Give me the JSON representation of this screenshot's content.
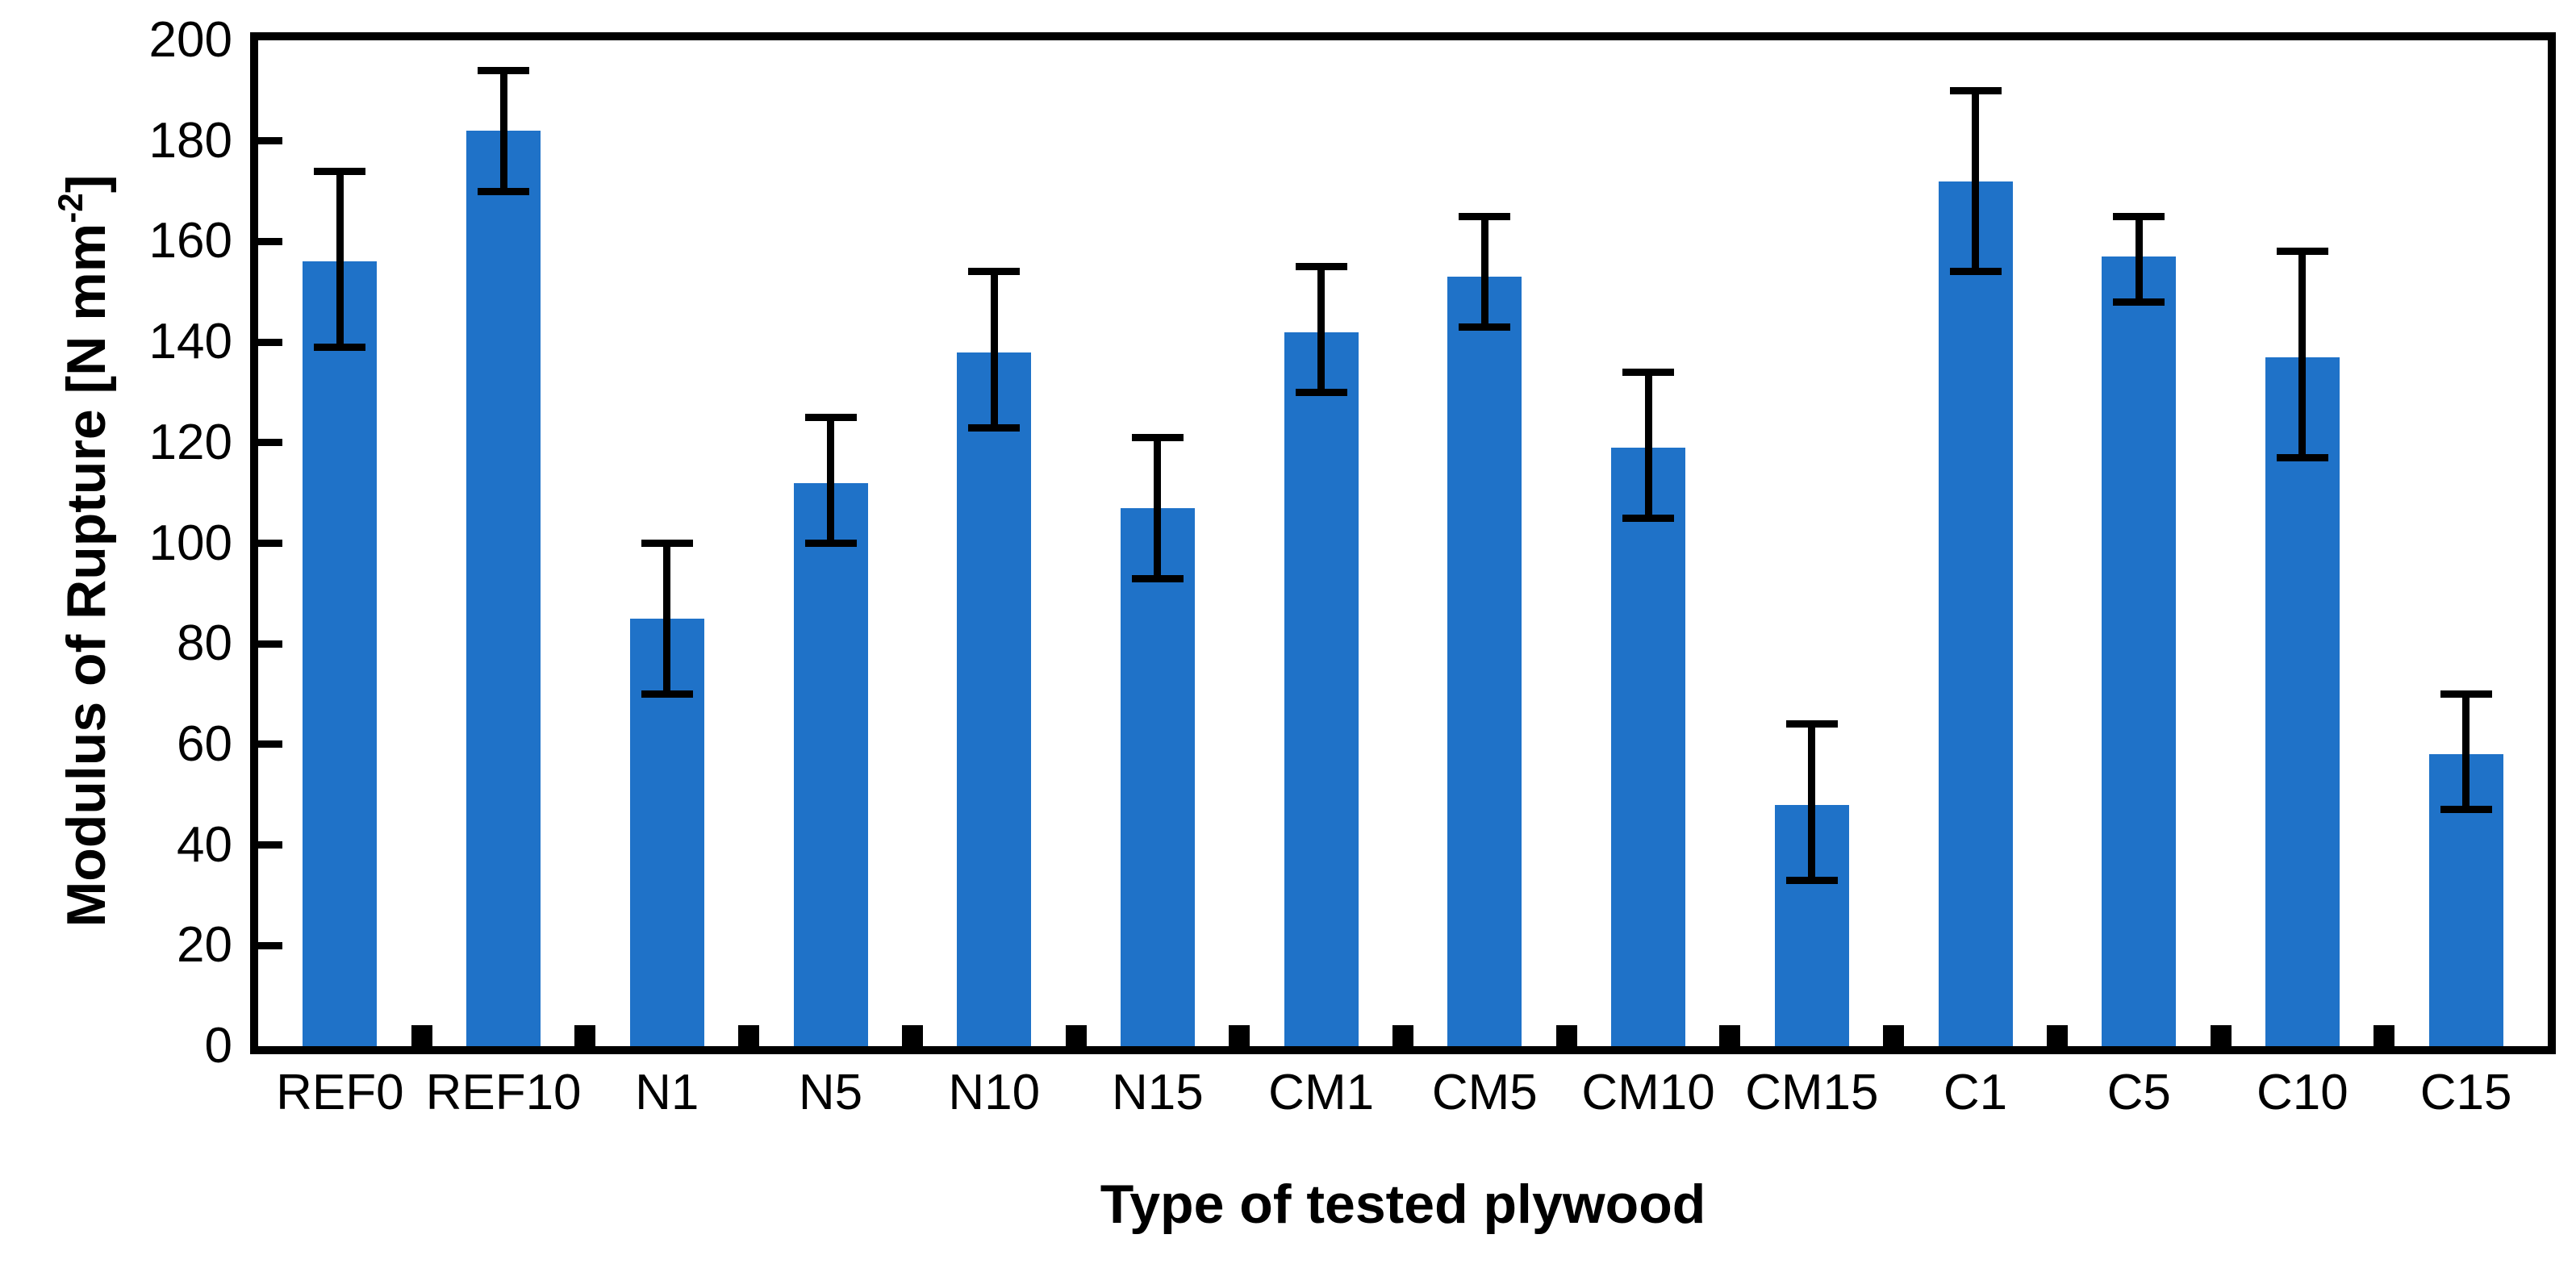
{
  "chart_data": {
    "type": "bar",
    "title": "",
    "xlabel": "Type of tested plywood",
    "ylabel": "Modulus of Rupture [N mm-2]",
    "ylabel_parts": {
      "prefix": "Modulus of Rupture [N mm",
      "sup": "-2",
      "suffix": "]"
    },
    "ylim": [
      0,
      200
    ],
    "ytick_step": 20,
    "grid": false,
    "legend": null,
    "bar_color": "#1F72C8",
    "axis_color": "#000000",
    "error_bar_color": "#000000",
    "categories": [
      "REF0",
      "REF10",
      "N1",
      "N5",
      "N10",
      "N15",
      "CM1",
      "CM5",
      "CM10",
      "CM15",
      "C1",
      "C5",
      "C10",
      "C15"
    ],
    "values": [
      156,
      182,
      85,
      112,
      138,
      107,
      142,
      153,
      119,
      48,
      172,
      157,
      137,
      58
    ],
    "error_down": [
      17,
      12,
      15,
      12,
      15,
      14,
      12,
      10,
      14,
      15,
      18,
      9,
      20,
      11
    ],
    "error_up": [
      18,
      12,
      15,
      13,
      16,
      14,
      13,
      12,
      15,
      16,
      18,
      8,
      21,
      12
    ]
  }
}
